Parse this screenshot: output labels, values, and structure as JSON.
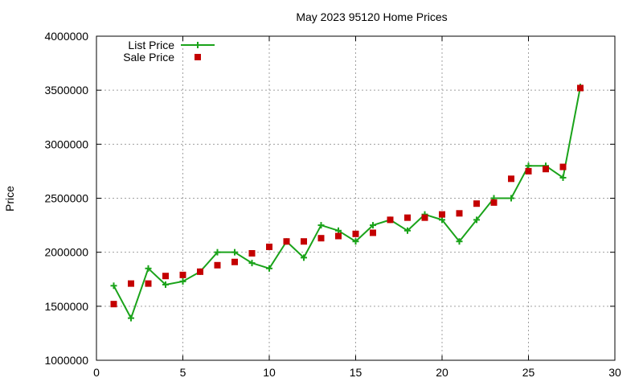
{
  "chart_data": {
    "type": "line",
    "title": "May 2023 95120 Home Prices",
    "xlabel": "",
    "ylabel": "Price",
    "xlim": [
      0,
      30
    ],
    "ylim": [
      1000000,
      4000000
    ],
    "xticks": [
      0,
      5,
      10,
      15,
      20,
      25,
      30
    ],
    "yticks": [
      1000000,
      1500000,
      2000000,
      2500000,
      3000000,
      3500000,
      4000000
    ],
    "grid": true,
    "legend_position": "top-left",
    "series": [
      {
        "name": "List Price",
        "style": "line-plus",
        "color": "#1aa31a",
        "x": [
          1,
          2,
          3,
          4,
          5,
          6,
          7,
          8,
          9,
          10,
          11,
          12,
          13,
          14,
          15,
          16,
          17,
          18,
          19,
          20,
          21,
          22,
          23,
          24,
          25,
          26,
          27,
          28
        ],
        "y": [
          1690000,
          1390000,
          1850000,
          1700000,
          1730000,
          1820000,
          2000000,
          2000000,
          1900000,
          1850000,
          2100000,
          1950000,
          2250000,
          2200000,
          2100000,
          2250000,
          2300000,
          2200000,
          2350000,
          2300000,
          2100000,
          2300000,
          2500000,
          2500000,
          2800000,
          2800000,
          2690000,
          3530000
        ]
      },
      {
        "name": "Sale Price",
        "style": "square",
        "color": "#c40000",
        "x": [
          1,
          2,
          3,
          4,
          5,
          6,
          7,
          8,
          9,
          10,
          11,
          12,
          13,
          14,
          15,
          16,
          17,
          18,
          19,
          20,
          21,
          22,
          23,
          24,
          25,
          26,
          27,
          28
        ],
        "y": [
          1520000,
          1710000,
          1710000,
          1780000,
          1790000,
          1820000,
          1880000,
          1910000,
          1990000,
          2050000,
          2100000,
          2100000,
          2130000,
          2150000,
          2170000,
          2180000,
          2300000,
          2320000,
          2320000,
          2350000,
          2360000,
          2450000,
          2460000,
          2680000,
          2750000,
          2770000,
          2790000,
          3520000
        ]
      }
    ]
  }
}
